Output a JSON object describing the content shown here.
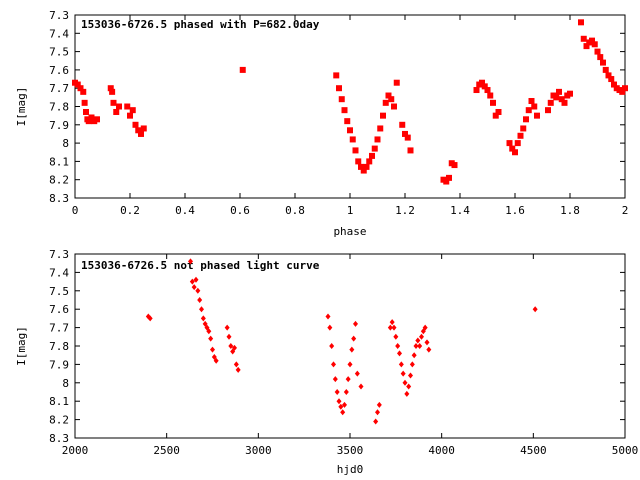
{
  "chart_data": [
    {
      "type": "scatter",
      "title": "153036-6726.5 phased with P=682.0day",
      "xlabel": "phase",
      "ylabel": "I[mag]",
      "xlim": [
        0,
        2
      ],
      "ylim": [
        8.3,
        7.3
      ],
      "y_inverted": true,
      "grid": false,
      "x_ticks": [
        "0",
        "0.2",
        "0.4",
        "0.6",
        "0.8",
        "1",
        "1.2",
        "1.4",
        "1.6",
        "1.8",
        "2"
      ],
      "x_tick_values": [
        0,
        0.2,
        0.4,
        0.6,
        0.8,
        1.0,
        1.2,
        1.4,
        1.6,
        1.8,
        2.0
      ],
      "y_ticks": [
        "7.3",
        "7.4",
        "7.5",
        "7.6",
        "7.7",
        "7.8",
        "7.9",
        "8",
        "8.1",
        "8.2",
        "8.3"
      ],
      "y_tick_values": [
        7.3,
        7.4,
        7.5,
        7.6,
        7.7,
        7.8,
        7.9,
        8.0,
        8.1,
        8.2,
        8.3
      ],
      "color": "#ff0000",
      "marker": "square",
      "series": [
        {
          "x": [
            0.0,
            0.01,
            0.02,
            0.03,
            0.035,
            0.04,
            0.045,
            0.05,
            0.06,
            0.07,
            0.08,
            0.13,
            0.135,
            0.14,
            0.15,
            0.16,
            0.19,
            0.2,
            0.21,
            0.22,
            0.23,
            0.24,
            0.25,
            0.61,
            0.95,
            0.96,
            0.97,
            0.98,
            0.99,
            1.0,
            1.01,
            1.02,
            1.03,
            1.04,
            1.05,
            1.06,
            1.07,
            1.08,
            1.09,
            1.1,
            1.11,
            1.12,
            1.13,
            1.14,
            1.15,
            1.16,
            1.17,
            1.19,
            1.2,
            1.21,
            1.22,
            1.34,
            1.35,
            1.36,
            1.37,
            1.38,
            1.46,
            1.47,
            1.48,
            1.49,
            1.5,
            1.51,
            1.52,
            1.53,
            1.54,
            1.58,
            1.59,
            1.6,
            1.61,
            1.62,
            1.63,
            1.64,
            1.65,
            1.66,
            1.67,
            1.68,
            1.72,
            1.73,
            1.74,
            1.75,
            1.76,
            1.77,
            1.78,
            1.79,
            1.8,
            1.84,
            1.85,
            1.86,
            1.87,
            1.88,
            1.89,
            1.9,
            1.91,
            1.92,
            1.93,
            1.94,
            1.95,
            1.96,
            1.97,
            1.98,
            1.99,
            2.0
          ],
          "y": [
            7.67,
            7.68,
            7.7,
            7.72,
            7.78,
            7.83,
            7.87,
            7.88,
            7.86,
            7.88,
            7.87,
            7.7,
            7.72,
            7.78,
            7.83,
            7.8,
            7.8,
            7.85,
            7.82,
            7.9,
            7.93,
            7.95,
            7.92,
            7.6,
            7.63,
            7.7,
            7.76,
            7.82,
            7.88,
            7.93,
            7.98,
            8.04,
            8.1,
            8.13,
            8.15,
            8.13,
            8.1,
            8.07,
            8.03,
            7.98,
            7.92,
            7.85,
            7.78,
            7.74,
            7.76,
            7.8,
            7.67,
            7.9,
            7.95,
            7.97,
            8.04,
            8.2,
            8.21,
            8.19,
            8.11,
            8.12,
            7.71,
            7.68,
            7.67,
            7.69,
            7.71,
            7.74,
            7.78,
            7.85,
            7.83,
            8.0,
            8.03,
            8.05,
            8.0,
            7.96,
            7.92,
            7.87,
            7.82,
            7.77,
            7.8,
            7.85,
            7.82,
            7.78,
            7.74,
            7.75,
            7.72,
            7.76,
            7.78,
            7.74,
            7.73,
            7.34,
            7.43,
            7.47,
            7.45,
            7.44,
            7.46,
            7.5,
            7.53,
            7.56,
            7.6,
            7.63,
            7.65,
            7.68,
            7.7,
            7.71,
            7.72,
            7.7
          ]
        }
      ]
    },
    {
      "type": "scatter",
      "title": "153036-6726.5 not phased light curve",
      "xlabel": "hjd0",
      "ylabel": "I[mag]",
      "xlim": [
        2000,
        5000
      ],
      "ylim": [
        8.3,
        7.3
      ],
      "y_inverted": true,
      "grid": false,
      "x_ticks": [
        "2000",
        "2500",
        "3000",
        "3500",
        "4000",
        "4500",
        "5000"
      ],
      "x_tick_values": [
        2000,
        2500,
        3000,
        3500,
        4000,
        4500,
        5000
      ],
      "y_ticks": [
        "7.3",
        "7.4",
        "7.5",
        "7.6",
        "7.7",
        "7.8",
        "7.9",
        "8",
        "8.1",
        "8.2",
        "8.3"
      ],
      "y_tick_values": [
        7.3,
        7.4,
        7.5,
        7.6,
        7.7,
        7.8,
        7.9,
        8.0,
        8.1,
        8.2,
        8.3
      ],
      "color": "#ff0000",
      "marker": "diamond",
      "series": [
        {
          "x": [
            2400,
            2410,
            2630,
            2640,
            2650,
            2660,
            2670,
            2680,
            2690,
            2700,
            2710,
            2720,
            2730,
            2740,
            2750,
            2760,
            2770,
            2830,
            2840,
            2850,
            2860,
            2870,
            2880,
            2890,
            3380,
            3390,
            3400,
            3410,
            3420,
            3430,
            3440,
            3450,
            3460,
            3470,
            3480,
            3490,
            3500,
            3510,
            3520,
            3530,
            3540,
            3560,
            3640,
            3650,
            3660,
            3720,
            3730,
            3740,
            3750,
            3760,
            3770,
            3780,
            3790,
            3800,
            3810,
            3820,
            3830,
            3840,
            3850,
            3860,
            3870,
            3880,
            3890,
            3900,
            3910,
            3920,
            3930,
            4510
          ],
          "y": [
            7.64,
            7.65,
            7.34,
            7.45,
            7.48,
            7.44,
            7.5,
            7.55,
            7.6,
            7.65,
            7.68,
            7.7,
            7.72,
            7.76,
            7.82,
            7.86,
            7.88,
            7.7,
            7.75,
            7.8,
            7.83,
            7.81,
            7.9,
            7.93,
            7.64,
            7.7,
            7.8,
            7.9,
            7.98,
            8.05,
            8.1,
            8.13,
            8.16,
            8.12,
            8.05,
            7.98,
            7.9,
            7.82,
            7.76,
            7.68,
            7.95,
            8.02,
            8.21,
            8.16,
            8.12,
            7.7,
            7.67,
            7.7,
            7.75,
            7.8,
            7.84,
            7.9,
            7.95,
            8.0,
            8.06,
            8.02,
            7.96,
            7.9,
            7.85,
            7.8,
            7.77,
            7.8,
            7.75,
            7.72,
            7.7,
            7.78,
            7.82,
            7.6
          ]
        }
      ]
    }
  ]
}
